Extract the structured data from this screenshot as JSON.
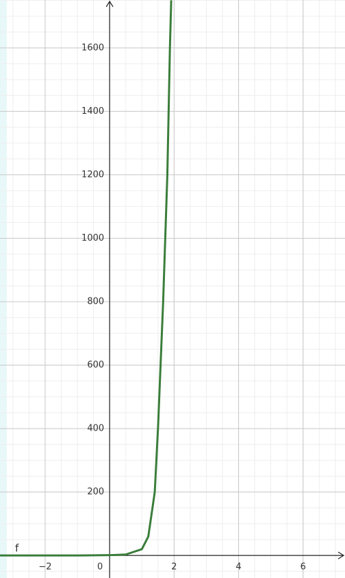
{
  "chart_data": {
    "type": "line",
    "function_label": "f",
    "x": [
      -3.4,
      -2,
      -1,
      0,
      0.5,
      1,
      1.2,
      1.4,
      1.5,
      1.66,
      1.79,
      1.87,
      1.91
    ],
    "series": [
      {
        "name": "f",
        "color": "#3a7d3a",
        "values": [
          0,
          0,
          0,
          1,
          3,
          20,
          60,
          200,
          400,
          800,
          1200,
          1600,
          1750
        ]
      }
    ],
    "xlim": [
      -3.4,
      7.3
    ],
    "ylim": [
      -71,
      1751
    ],
    "xticks": [
      {
        "value": -2,
        "label": "−2"
      },
      0,
      2,
      4,
      6
    ],
    "yticks": [
      200,
      400,
      600,
      800,
      1000,
      1200,
      1400,
      1600
    ],
    "grid": true
  }
}
